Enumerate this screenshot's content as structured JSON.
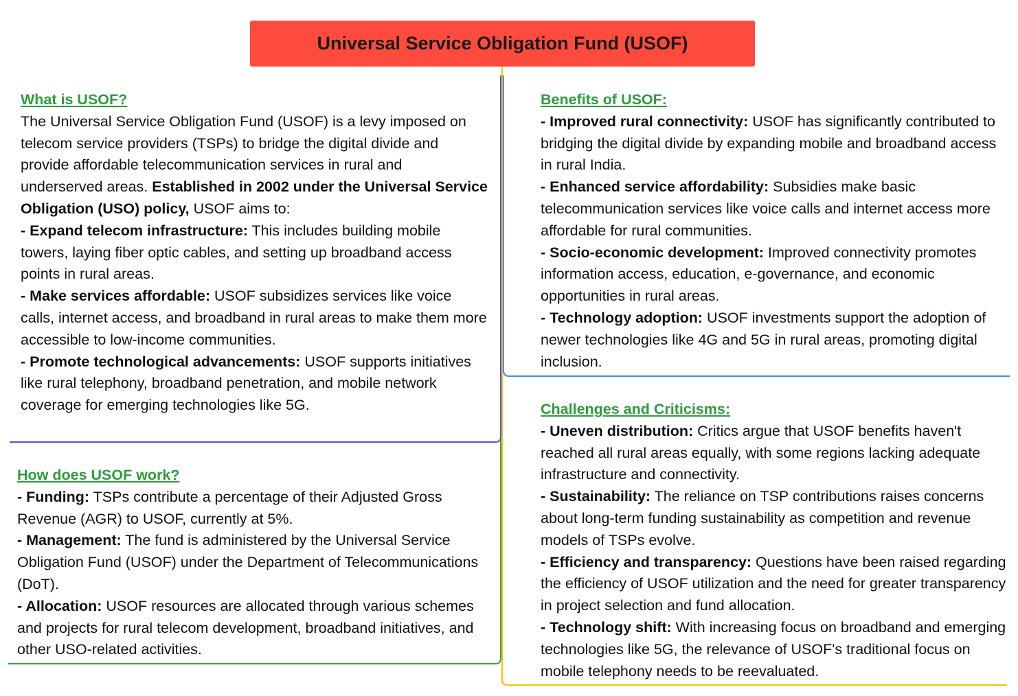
{
  "title": "Universal Service Obligation Fund (USOF)",
  "colors": {
    "title_bg": "#ff4b3e",
    "heading": "#2e9c3c",
    "trunk_line": "#f5c518",
    "what_line": "#5050d8",
    "how_line": "#3aa046",
    "benefits_line": "#3d8fe0",
    "challenges_line": "#f5c518"
  },
  "what": {
    "heading": "What is USOF?",
    "intro_text": "The Universal Service Obligation Fund (USOF) is a levy imposed on telecom service providers (TSPs) to bridge the digital divide and provide affordable telecommunication services in rural and underserved areas. ",
    "intro_bold": "Established in 2002 under the Universal Service Obligation (USO) policy,",
    "intro_tail": " USOF aims to:",
    "items": [
      {
        "lead": "- Expand telecom infrastructure:",
        "text": " This includes building mobile towers, laying fiber optic cables, and setting up broadband access points in rural areas."
      },
      {
        "lead": "- Make services affordable:",
        "text": " USOF subsidizes services like voice calls, internet access, and broadband in rural areas to make them more accessible to low-income communities."
      },
      {
        "lead": "- Promote technological advancements:",
        "text": " USOF supports initiatives like rural telephony, broadband penetration, and mobile network coverage for emerging technologies like 5G."
      }
    ]
  },
  "how": {
    "heading": "How does USOF work?",
    "items": [
      {
        "lead": "- Funding:",
        "text": " TSPs contribute a percentage of their Adjusted Gross Revenue (AGR) to USOF, currently at 5%."
      },
      {
        "lead": "- Management:",
        "text": " The fund is administered by the Universal Service Obligation Fund (USOF) under the Department of Telecommunications (DoT)."
      },
      {
        "lead": "- Allocation:",
        "text": " USOF resources are allocated through various schemes and projects for rural telecom development, broadband initiatives, and other USO-related activities."
      }
    ]
  },
  "benefits": {
    "heading": "Benefits of USOF:",
    "items": [
      {
        "lead": "- Improved rural connectivity:",
        "text": " USOF has significantly contributed to bridging the digital divide by expanding mobile and broadband access in rural India."
      },
      {
        "lead": "- Enhanced service affordability:",
        "text": " Subsidies make basic telecommunication services like voice calls and internet access more affordable for rural communities."
      },
      {
        "lead": "- Socio-economic development:",
        "text": " Improved connectivity promotes information access, education, e-governance, and economic opportunities in rural areas."
      },
      {
        "lead": "- Technology adoption:",
        "text": " USOF investments support the adoption of newer technologies like 4G and 5G in rural areas, promoting digital inclusion."
      }
    ]
  },
  "challenges": {
    "heading": "Challenges and Criticisms:",
    "items": [
      {
        "lead": "- Uneven distribution:",
        "text": " Critics argue that USOF benefits haven't reached all rural areas equally, with some regions lacking adequate infrastructure and connectivity."
      },
      {
        "lead": "- Sustainability:",
        "text": " The reliance on TSP contributions raises concerns about long-term funding sustainability as competition and revenue models of TSPs evolve."
      },
      {
        "lead": "- Efficiency and transparency:",
        "text": " Questions have been raised regarding the efficiency of USOF utilization and the need for greater transparency in project selection and fund allocation."
      },
      {
        "lead": "- Technology shift:",
        "text": " With increasing focus on broadband and emerging technologies like 5G, the relevance of USOF's traditional focus on mobile telephony needs to be reevaluated."
      }
    ]
  }
}
